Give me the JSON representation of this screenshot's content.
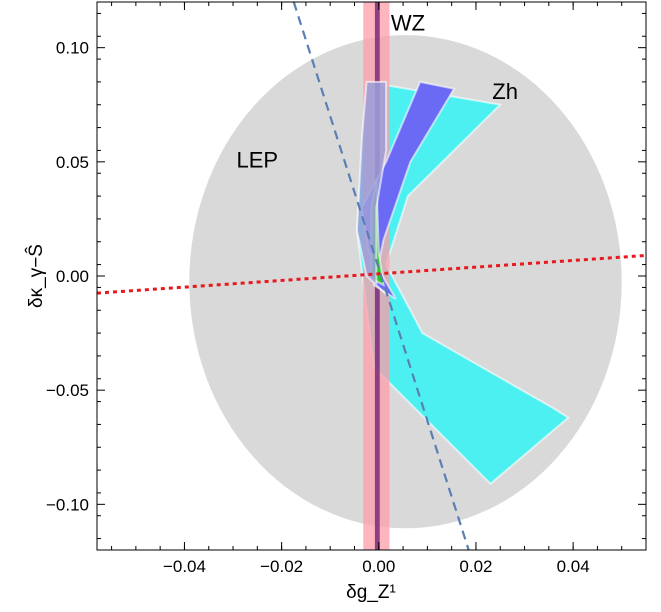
{
  "chart_data": {
    "type": "area",
    "xlabel": "δg_Z¹",
    "ylabel": "δκ_γ−Ŝ",
    "xlim": [
      -0.058,
      0.055
    ],
    "ylim": [
      -0.12,
      0.12
    ],
    "grid": false,
    "x_ticks": [
      -0.04,
      -0.02,
      0.0,
      0.02,
      0.04
    ],
    "x_tick_labels": [
      "−0.04",
      "−0.02",
      "0.00",
      "0.02",
      "0.04"
    ],
    "y_ticks": [
      -0.1,
      -0.05,
      0.0,
      0.05,
      0.1
    ],
    "y_tick_labels": [
      "−0.10",
      "−0.05",
      "0.00",
      "0.05",
      "0.10"
    ],
    "regions": [
      {
        "label": "LEP",
        "color": "#d9d9d9",
        "shape": "ellipse",
        "center": [
          0.0055,
          -0.0025
        ],
        "half_width_x": 0.0445,
        "half_width_y": 0.108,
        "label_at": [
          -0.025,
          0.05
        ]
      },
      {
        "label": "Zh",
        "color": "#4df0f0",
        "shape": "crescent",
        "outer": [
          [
            -0.0025,
            0.085
          ],
          [
            0.025,
            0.075
          ],
          [
            0.006,
            0.035
          ],
          [
            0.0015,
            0.005
          ],
          [
            0.009,
            -0.025
          ],
          [
            0.036,
            -0.058
          ],
          [
            0.039,
            -0.062
          ],
          [
            0.023,
            -0.091
          ],
          [
            -0.001,
            -0.04
          ],
          [
            -0.0045,
            0.02
          ]
        ],
        "label_at": [
          0.026,
          0.08
        ]
      },
      {
        "label": "WZ",
        "color": "#ff9ca8",
        "shape": "band",
        "x_range": [
          -0.0032,
          0.0022
        ],
        "core_x_range": [
          -0.0008,
          0.0002
        ],
        "core_color": "#7a2a7a",
        "label_at": [
          0.006,
          0.11
        ]
      },
      {
        "label": "",
        "color": "#6a6af5",
        "shape": "band_polygon",
        "outer": [
          [
            0.0085,
            0.085
          ],
          [
            0.0155,
            0.082
          ],
          [
            0.0065,
            0.05
          ],
          [
            0.001,
            0.016
          ],
          [
            -0.001,
            -0.004
          ],
          [
            0.0035,
            -0.01
          ],
          [
            -0.002,
            0.01
          ],
          [
            -0.0035,
            0.03
          ],
          [
            0.0015,
            0.05
          ]
        ]
      },
      {
        "label": "",
        "color": "#22cc22",
        "shape": "sliver",
        "outer": [
          [
            -0.0005,
            0.042
          ],
          [
            0.0,
            0.01
          ],
          [
            0.001,
            -0.004
          ],
          [
            -0.0015,
            -0.001
          ],
          [
            -0.0015,
            0.03
          ]
        ]
      },
      {
        "label": "",
        "color": "#9e9fd9",
        "shape": "polygon",
        "outer": [
          [
            -0.0025,
            0.085
          ],
          [
            0.0015,
            0.085
          ],
          [
            0.0015,
            0.055
          ],
          [
            -0.0005,
            0.03
          ],
          [
            -0.0005,
            -0.004
          ],
          [
            0.0015,
            -0.008
          ],
          [
            -0.0025,
            0.0
          ],
          [
            -0.0045,
            0.02
          ],
          [
            -0.0035,
            0.06
          ]
        ]
      }
    ],
    "lines": [
      {
        "name": "",
        "style": "dashed",
        "color": "#5a7fb5",
        "x": [
          -0.0175,
          0.0185
        ],
        "y": [
          0.12,
          -0.12
        ]
      },
      {
        "name": "",
        "style": "dotted",
        "color": "#e8191e",
        "x": [
          -0.058,
          0.055
        ],
        "y": [
          -0.0075,
          0.009
        ]
      }
    ]
  }
}
